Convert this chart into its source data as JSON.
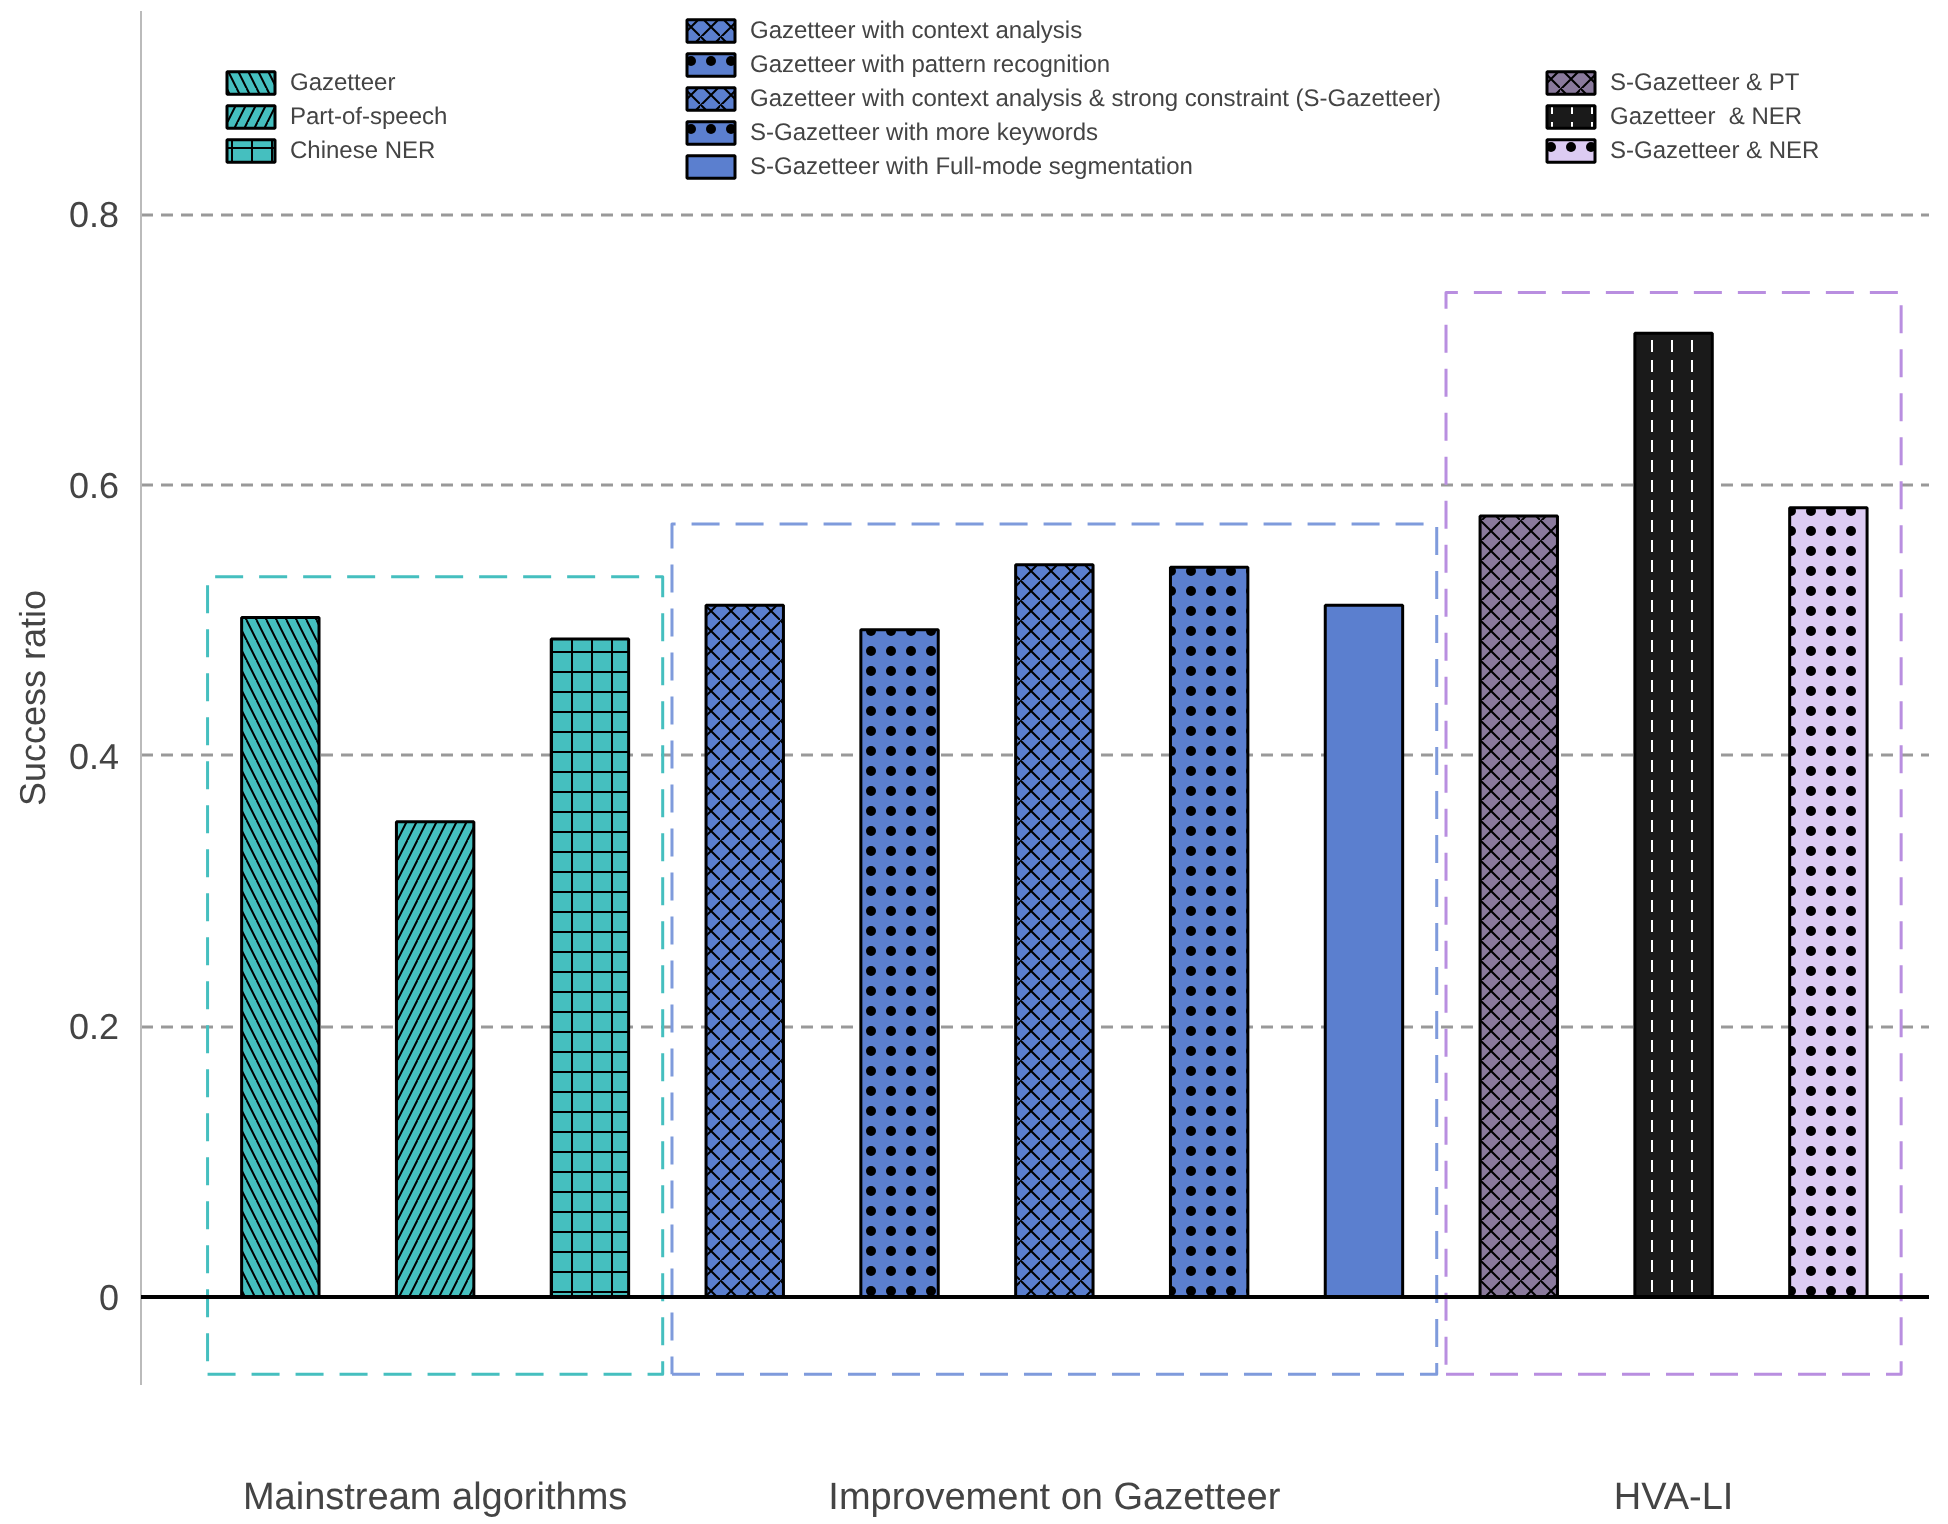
{
  "chart_data": {
    "type": "bar",
    "ylabel": "Success ratio",
    "categories": [
      "Mainstream algorithms",
      "Improvement on Gazetteer",
      "HVA-LI"
    ],
    "series": [
      {
        "name": "Gazetteer",
        "color": "#45bfbf",
        "values": [
          0.502,
          null,
          null
        ]
      },
      {
        "name": "Part-of-speech",
        "color": "#45bfbf",
        "values": [
          0.351,
          null,
          null
        ]
      },
      {
        "name": "Chinese NER",
        "color": "#45bfbf",
        "values": [
          0.486,
          null,
          null
        ]
      },
      {
        "name": "Gazetteer with context analysis",
        "color": "#5b7fcf",
        "values": [
          null,
          0.511,
          null
        ]
      },
      {
        "name": "Gazetteer with pattern recognition",
        "color": "#5b7fcf",
        "values": [
          null,
          0.493,
          null
        ]
      },
      {
        "name": "Gazetteer with context analysis & strong constraint (S-Gazetteer)",
        "color": "#5b7fcf",
        "values": [
          null,
          0.541,
          null
        ]
      },
      {
        "name": "S-Gazetteer with more keywords",
        "color": "#5b7fcf",
        "values": [
          null,
          0.539,
          null
        ]
      },
      {
        "name": "S-Gazetteer with Full-mode segmentation",
        "color": "#5b7fcf",
        "values": [
          null,
          0.511,
          null
        ]
      },
      {
        "name": "S-Gazetteer & PT",
        "color": "#8a7a9c",
        "values": [
          null,
          null,
          0.577
        ]
      },
      {
        "name": "Gazetteer  & NER",
        "color": "#1a1a1a",
        "values": [
          null,
          null,
          0.712
        ]
      },
      {
        "name": "S-Gazetteer & NER",
        "color": "#dccbf2",
        "values": [
          null,
          null,
          0.583
        ]
      }
    ],
    "ylim": [
      -0.065,
      0.95
    ],
    "yticks": [
      0,
      0.2,
      0.4,
      0.6,
      0.8
    ],
    "grid": "y",
    "legend": "top"
  }
}
